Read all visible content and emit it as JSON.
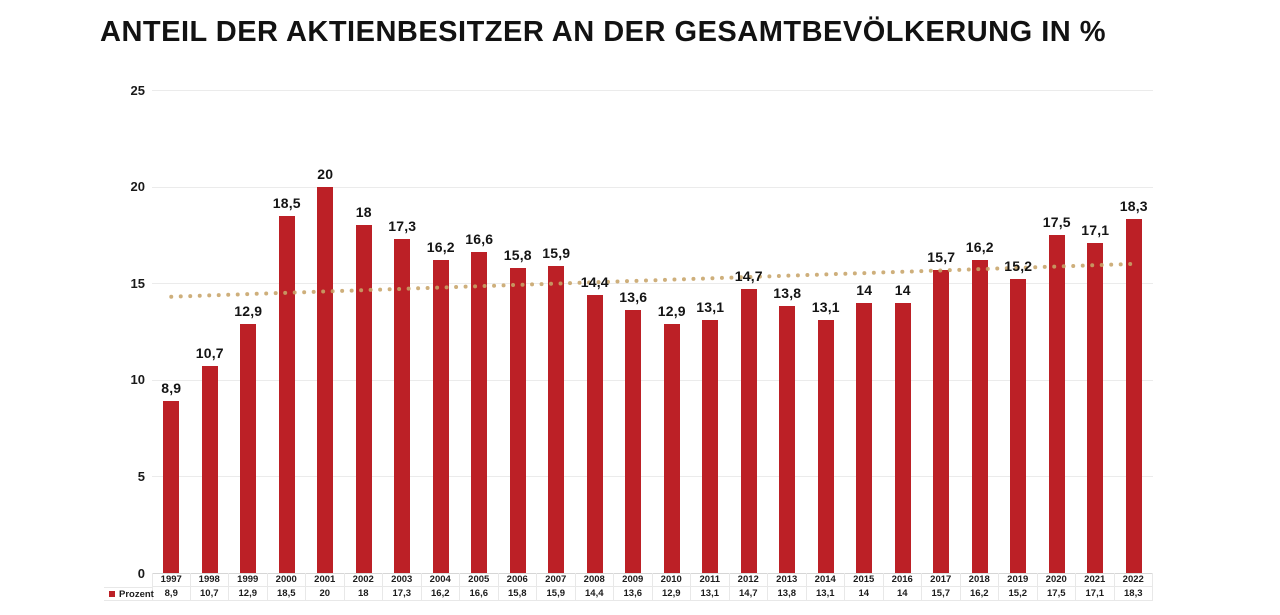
{
  "chart_data": {
    "type": "bar",
    "title": "ANTEIL DER AKTIENBESITZER AN DER GESAMTBEVÖLKERUNG IN %",
    "legend_label": "Prozent",
    "legend_position": "bottom-left",
    "categories": [
      "1997",
      "1998",
      "1999",
      "2000",
      "2001",
      "2002",
      "2003",
      "2004",
      "2005",
      "2006",
      "2007",
      "2008",
      "2009",
      "2010",
      "2011",
      "2012",
      "2013",
      "2014",
      "2015",
      "2016",
      "2017",
      "2018",
      "2019",
      "2020",
      "2021",
      "2022"
    ],
    "series": [
      {
        "name": "Prozent",
        "values": [
          8.9,
          10.7,
          12.9,
          18.5,
          20,
          18,
          17.3,
          16.2,
          16.6,
          15.8,
          15.9,
          14.4,
          13.6,
          12.9,
          13.1,
          14.7,
          13.8,
          13.1,
          14,
          14,
          15.7,
          16.2,
          15.2,
          17.5,
          17.1,
          18.3
        ]
      }
    ],
    "value_labels": [
      "8,9",
      "10,7",
      "12,9",
      "18,5",
      "20",
      "18",
      "17,3",
      "16,2",
      "16,6",
      "15,8",
      "15,9",
      "14,4",
      "13,6",
      "12,9",
      "13,1",
      "14,7",
      "13,8",
      "13,1",
      "14",
      "14",
      "15,7",
      "16,2",
      "15,2",
      "17,5",
      "17,1",
      "18,3"
    ],
    "ylim": [
      0,
      25
    ],
    "yticks": [
      0,
      5,
      10,
      15,
      20,
      25
    ],
    "grid": true,
    "bar_color": "#BC2026",
    "trend_line": {
      "style": "dotted",
      "color": "#C8A469",
      "start_value": 14.3,
      "end_value": 16.0
    }
  }
}
